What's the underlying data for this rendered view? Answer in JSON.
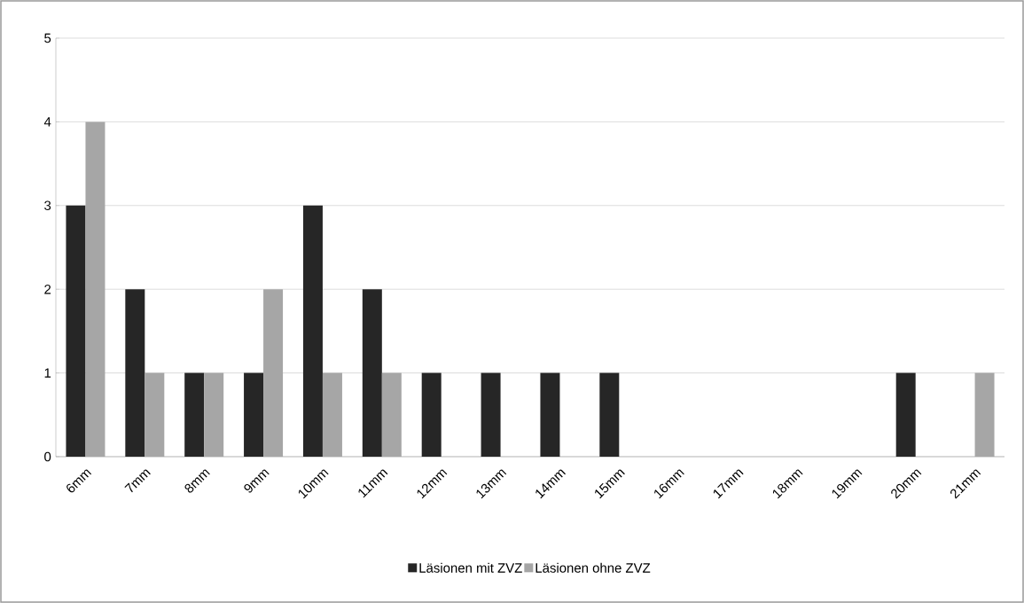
{
  "chart_data": {
    "type": "bar",
    "categories": [
      "6mm",
      "7mm",
      "8mm",
      "9mm",
      "10mm",
      "11mm",
      "12mm",
      "13mm",
      "14mm",
      "15mm",
      "16mm",
      "17mm",
      "18mm",
      "19mm",
      "20mm",
      "21mm"
    ],
    "series": [
      {
        "name": "Läsionen mit ZVZ",
        "color": "#262626",
        "values": [
          3,
          2,
          1,
          1,
          3,
          2,
          1,
          1,
          1,
          1,
          0,
          0,
          0,
          0,
          1,
          0
        ]
      },
      {
        "name": "Läsionen ohne ZVZ",
        "color": "#a6a6a6",
        "values": [
          4,
          1,
          1,
          2,
          1,
          1,
          0,
          0,
          0,
          0,
          0,
          0,
          0,
          0,
          0,
          1
        ]
      }
    ],
    "ylim": [
      0,
      5
    ],
    "yticks": [
      0,
      1,
      2,
      3,
      4,
      5
    ],
    "grid": "y",
    "legend": "bottom"
  }
}
